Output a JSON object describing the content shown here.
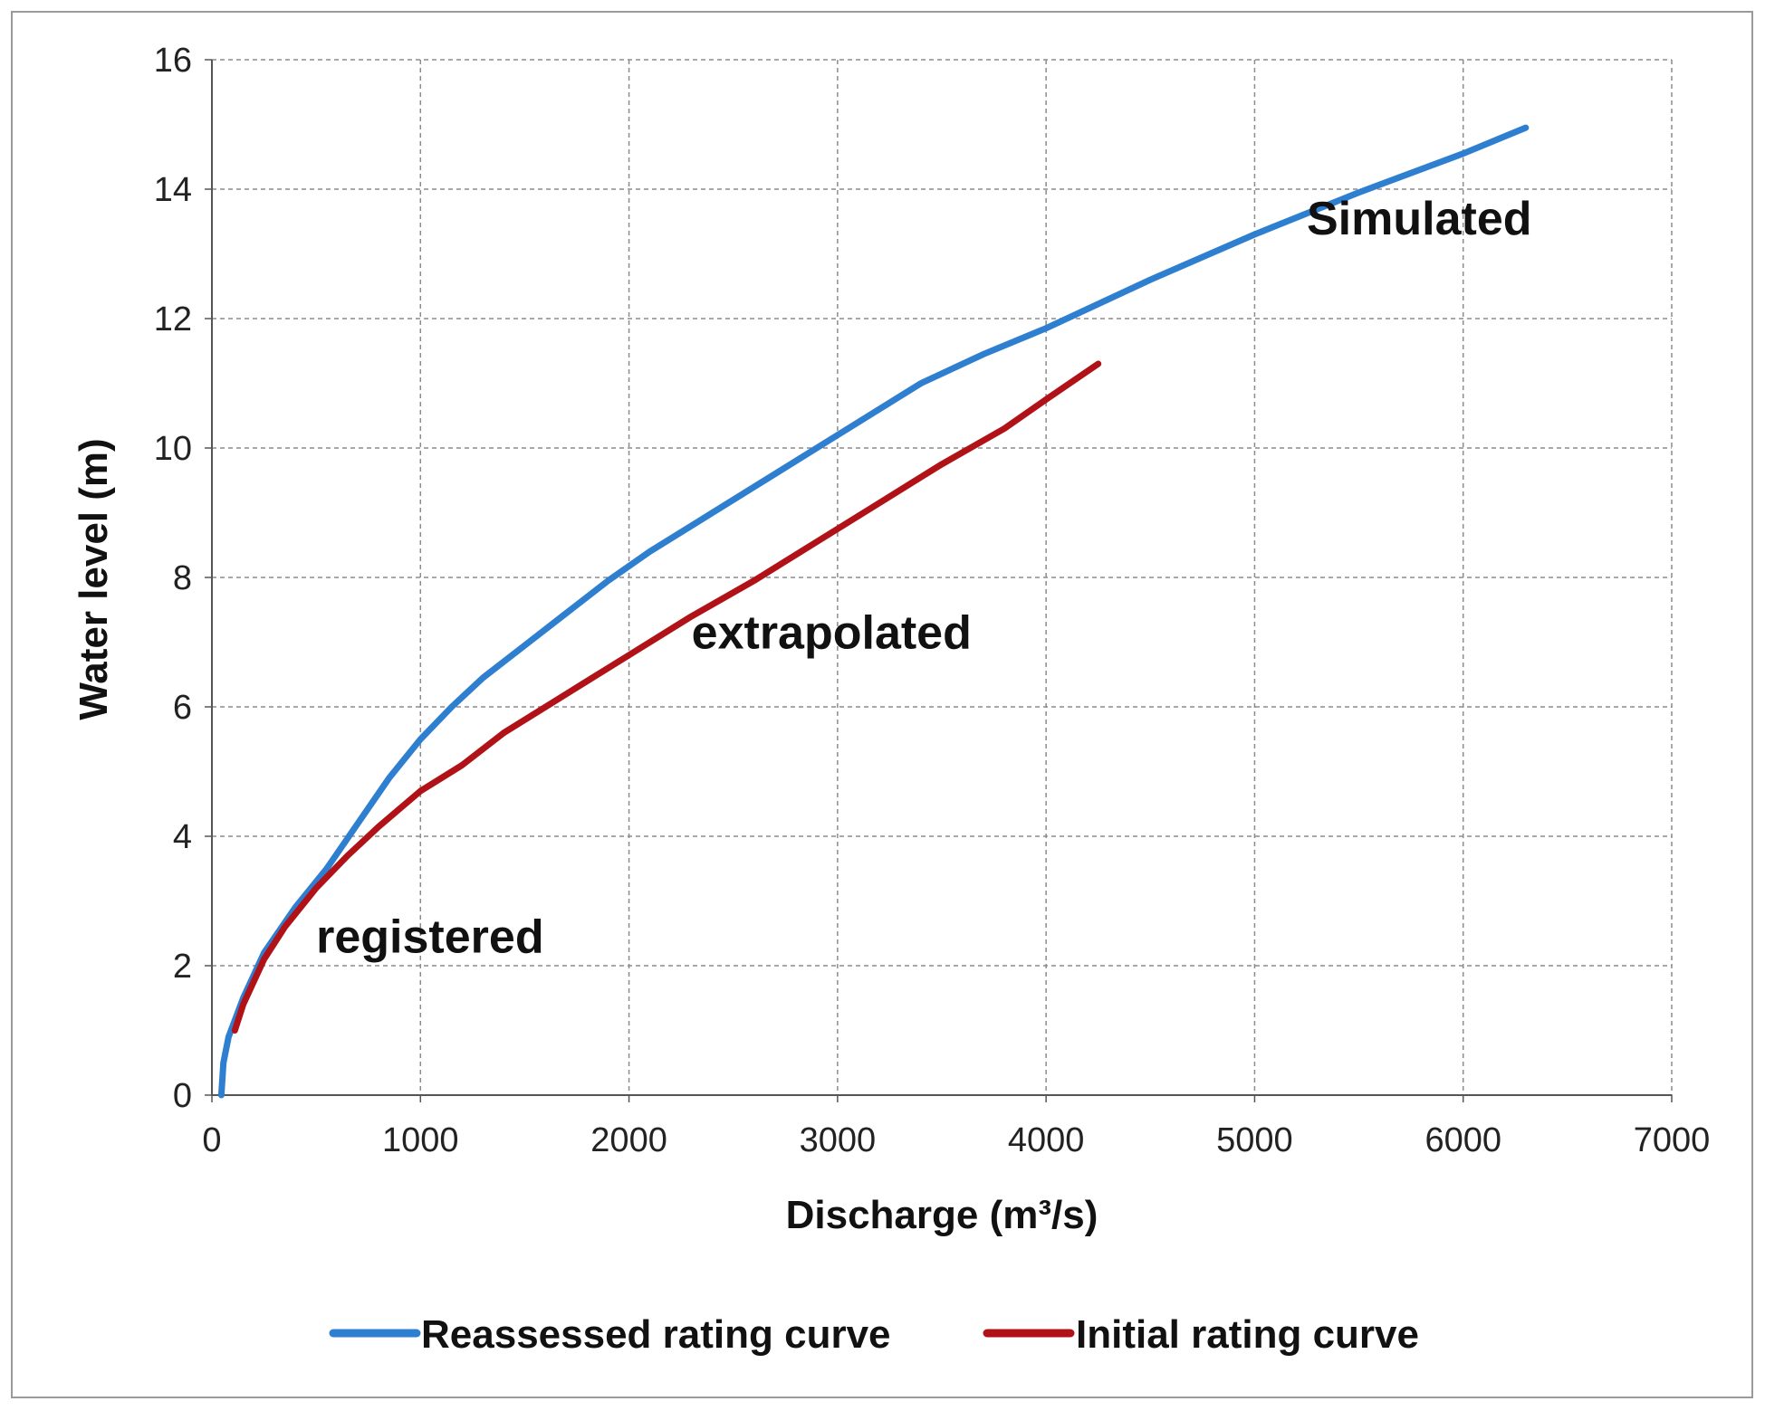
{
  "chart_data": {
    "type": "line",
    "title": "",
    "xlabel": "Discharge  (m³/s)",
    "ylabel": "Water level  (m)",
    "xlim": [
      0,
      7000
    ],
    "ylim": [
      0,
      16
    ],
    "xticks": [
      0,
      1000,
      2000,
      3000,
      4000,
      5000,
      6000,
      7000
    ],
    "yticks": [
      0,
      2,
      4,
      6,
      8,
      10,
      12,
      14,
      16
    ],
    "grid": true,
    "legend_position": "bottom",
    "series": [
      {
        "name": "Reassessed rating curve",
        "color": "#2f7fd1",
        "points": [
          [
            45,
            0
          ],
          [
            55,
            0.5
          ],
          [
            80,
            0.9
          ],
          [
            150,
            1.5
          ],
          [
            250,
            2.2
          ],
          [
            400,
            2.9
          ],
          [
            550,
            3.5
          ],
          [
            700,
            4.2
          ],
          [
            850,
            4.9
          ],
          [
            1000,
            5.5
          ],
          [
            1150,
            6.0
          ],
          [
            1300,
            6.45
          ],
          [
            1500,
            6.95
          ],
          [
            1700,
            7.45
          ],
          [
            1900,
            7.95
          ],
          [
            2100,
            8.4
          ],
          [
            2400,
            9.0
          ],
          [
            2700,
            9.6
          ],
          [
            3000,
            10.2
          ],
          [
            3400,
            11.0
          ],
          [
            3700,
            11.45
          ],
          [
            4000,
            11.85
          ],
          [
            4500,
            12.6
          ],
          [
            5000,
            13.3
          ],
          [
            5500,
            13.95
          ],
          [
            6000,
            14.55
          ],
          [
            6300,
            14.95
          ]
        ]
      },
      {
        "name": "Initial rating curve",
        "color": "#b01217",
        "points": [
          [
            110,
            1.0
          ],
          [
            150,
            1.4
          ],
          [
            250,
            2.1
          ],
          [
            350,
            2.6
          ],
          [
            500,
            3.2
          ],
          [
            650,
            3.7
          ],
          [
            800,
            4.15
          ],
          [
            1000,
            4.7
          ],
          [
            1200,
            5.1
          ],
          [
            1400,
            5.6
          ],
          [
            1600,
            6.0
          ],
          [
            1800,
            6.4
          ],
          [
            2000,
            6.8
          ],
          [
            2300,
            7.4
          ],
          [
            2600,
            7.95
          ],
          [
            2900,
            8.55
          ],
          [
            3200,
            9.15
          ],
          [
            3500,
            9.75
          ],
          [
            3800,
            10.3
          ],
          [
            4000,
            10.75
          ],
          [
            4250,
            11.3
          ]
        ]
      }
    ],
    "annotations": [
      {
        "text": "Simulated",
        "x": 5250,
        "y": 13.3
      },
      {
        "text": "extrapolated",
        "x": 2300,
        "y": 6.9
      },
      {
        "text": "registered",
        "x": 500,
        "y": 2.2
      }
    ]
  }
}
